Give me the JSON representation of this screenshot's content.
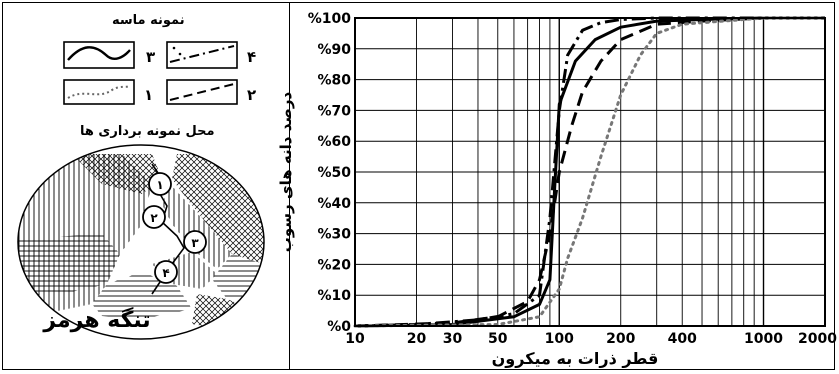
{
  "legend_title": "نمونه ماسه",
  "legend_items": [
    {
      "num": "۳",
      "style": "solid"
    },
    {
      "num": "۴",
      "style": "dashdot"
    },
    {
      "num": "۱",
      "style": "dotted"
    },
    {
      "num": "۲",
      "style": "dashed"
    }
  ],
  "map_title": "محل نمونه برداری ها",
  "map_place": "تنگه هرمز",
  "map_points": [
    "۱",
    "۲",
    "۳",
    "۴"
  ],
  "chart_data": {
    "type": "line",
    "xscale": "log",
    "xlim": [
      10,
      2000
    ],
    "ylim": [
      0,
      100
    ],
    "xlabel": "قطر ذرات به میکرون",
    "ylabel": "درصد دانه های رسوب",
    "xticks": [
      "10",
      "20",
      "30",
      "50",
      "100",
      "200",
      "400",
      "1000",
      "2000"
    ],
    "xtick_values": [
      10,
      20,
      30,
      50,
      100,
      200,
      400,
      1000,
      2000
    ],
    "yticks": [
      "%0",
      "%10",
      "%20",
      "%30",
      "%40",
      "%50",
      "%60",
      "%70",
      "%80",
      "%90",
      "%100"
    ],
    "grid": true,
    "series": [
      {
        "label": "۳",
        "style": "solid",
        "x": [
          10,
          30,
          60,
          80,
          90,
          95,
          100,
          120,
          150,
          200,
          300,
          500,
          1000,
          2000
        ],
        "y": [
          0,
          0.5,
          3,
          7,
          15,
          45,
          72,
          86,
          93,
          97,
          99,
          99.5,
          100,
          100
        ]
      },
      {
        "label": "۴",
        "style": "dashdot",
        "x": [
          10,
          20,
          40,
          60,
          80,
          90,
          100,
          110,
          130,
          160,
          200,
          300,
          1000,
          2000
        ],
        "y": [
          0,
          0.5,
          2,
          4,
          10,
          35,
          70,
          88,
          96,
          98.5,
          99.5,
          100,
          100,
          100
        ]
      },
      {
        "label": "۲",
        "style": "dashed",
        "x": [
          10,
          30,
          50,
          70,
          80,
          90,
          100,
          115,
          130,
          160,
          200,
          300,
          500,
          1000,
          2000
        ],
        "y": [
          0,
          1,
          3,
          8,
          15,
          30,
          50,
          65,
          76,
          86,
          93,
          98,
          99,
          100,
          100
        ]
      },
      {
        "label": "۱",
        "style": "dotted",
        "x": [
          10,
          50,
          80,
          100,
          110,
          130,
          160,
          200,
          250,
          300,
          400,
          1000,
          2000
        ],
        "y": [
          0,
          0.5,
          3,
          12,
          22,
          35,
          55,
          75,
          88,
          95,
          98,
          100,
          100
        ]
      }
    ]
  }
}
